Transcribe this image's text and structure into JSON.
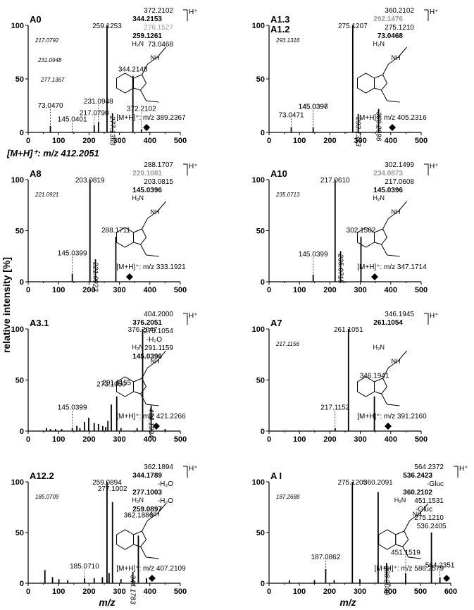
{
  "figure": {
    "ylabel": "relative intensity [%]",
    "xlabel": "m/z",
    "precursor_note": "[M+H]⁺: m/z 412.2051"
  },
  "chart_data": [
    {
      "id": "A0",
      "type": "bar",
      "label": "A0",
      "xlim": [
        0,
        500
      ],
      "ylim": [
        0,
        100
      ],
      "xticks": [
        0,
        100,
        200,
        300,
        400,
        500
      ],
      "yticks": [
        0,
        50,
        100
      ],
      "precursor": "[M+H]⁺: m/z 389.2367",
      "precursor_mz": 389.2,
      "peaks": [
        [
          73.047,
          6
        ],
        [
          145.0401,
          1
        ],
        [
          217.079,
          7
        ],
        [
          231.0948,
          10
        ],
        [
          259.1253,
          100
        ],
        [
          277.1363,
          18
        ],
        [
          344.2148,
          53
        ],
        [
          372.2102,
          3
        ]
      ],
      "peak_labels": [
        {
          "mz": 259.1253,
          "text": "259.1253"
        },
        {
          "mz": 231.0948,
          "text": "231.0948"
        },
        {
          "mz": 217.079,
          "text": "217.0790"
        },
        {
          "mz": 73.047,
          "text": "73.0470"
        },
        {
          "mz": 145.0401,
          "text": "145.0401"
        },
        {
          "mz": 277.1363,
          "text": "277.1363"
        },
        {
          "mz": 344.2148,
          "text": "344.2148"
        },
        {
          "mz": 372.2102,
          "text": "372.2102"
        }
      ],
      "fragments": [
        "372.2102",
        "344.2153",
        "276.1527",
        "259.1261",
        "73.0468"
      ],
      "inset_values": [
        "217.0792",
        "231.0948",
        "277.1367"
      ]
    },
    {
      "id": "A1.3",
      "type": "bar",
      "label": "A1.3",
      "label2": "A1.2",
      "xlim": [
        0,
        500
      ],
      "ylim": [
        0,
        100
      ],
      "xticks": [
        0,
        100,
        200,
        300,
        400,
        500
      ],
      "yticks": [
        0,
        50,
        100
      ],
      "precursor": "[M+H]⁺: m/z 405.2316",
      "precursor_mz": 405.2,
      "peaks": [
        [
          73.0471,
          5
        ],
        [
          145.0397,
          5
        ],
        [
          275.1207,
          100
        ],
        [
          293.1313,
          17
        ],
        [
          360.2096,
          22
        ]
      ],
      "peak_labels": [
        {
          "mz": 275.1207,
          "text": "275.1207"
        },
        {
          "mz": 145.0396,
          "text": "145.0396"
        },
        {
          "mz": 73.0471,
          "text": "73.0471"
        },
        {
          "mz": 145.0397,
          "text": "145.0397"
        },
        {
          "mz": 293.1313,
          "text": "293.1313"
        },
        {
          "mz": 360.2096,
          "text": "360.2096"
        }
      ],
      "fragments": [
        "360.2102",
        "292.1476",
        "275.1210",
        "73.0468"
      ],
      "inset_values": [
        "293.1316"
      ]
    },
    {
      "id": "A8",
      "type": "bar",
      "label": "A8",
      "xlim": [
        0,
        500
      ],
      "ylim": [
        0,
        100
      ],
      "xticks": [
        0,
        100,
        200,
        300,
        400,
        500
      ],
      "yticks": [
        0,
        50,
        100
      ],
      "precursor": "[M+H]⁺: m/z 333.1921",
      "precursor_mz": 333.2,
      "peaks": [
        [
          145.0399,
          8
        ],
        [
          203.0819,
          100
        ],
        [
          221.0923,
          22
        ],
        [
          288.1711,
          44
        ]
      ],
      "peak_labels": [
        {
          "mz": 203.0819,
          "text": "203.0819"
        },
        {
          "mz": 145.0399,
          "text": "145.0399"
        },
        {
          "mz": 221.0923,
          "text": "221.0923"
        },
        {
          "mz": 288.1711,
          "text": "288.1711"
        }
      ],
      "fragments": [
        "288.1707",
        "220.1081",
        "203.0815",
        "145.0396"
      ],
      "inset_values": [
        "221.0921"
      ]
    },
    {
      "id": "A10",
      "type": "bar",
      "label": "A10",
      "xlim": [
        0,
        500
      ],
      "ylim": [
        0,
        100
      ],
      "xticks": [
        0,
        100,
        200,
        300,
        400,
        500
      ],
      "yticks": [
        0,
        50,
        100
      ],
      "precursor": "[M+H]⁺: m/z 347.1714",
      "precursor_mz": 347.2,
      "peaks": [
        [
          145.0399,
          7
        ],
        [
          217.061,
          100
        ],
        [
          235.0715,
          30
        ],
        [
          302.1502,
          44
        ]
      ],
      "peak_labels": [
        {
          "mz": 217.061,
          "text": "217.0610"
        },
        {
          "mz": 145.0399,
          "text": "145.0399"
        },
        {
          "mz": 235.0715,
          "text": "235.0715"
        },
        {
          "mz": 302.1502,
          "text": "302.1502"
        }
      ],
      "fragments": [
        "302.1499",
        "234.0873",
        "217.0608",
        "145.0396"
      ],
      "inset_values": [
        "235.0713"
      ]
    },
    {
      "id": "A3.1",
      "type": "bar",
      "label": "A3.1",
      "xlim": [
        0,
        500
      ],
      "ylim": [
        0,
        100
      ],
      "xticks": [
        0,
        100,
        200,
        300,
        400,
        500
      ],
      "yticks": [
        0,
        50,
        100
      ],
      "precursor": "[M+H]⁺: m/z 421.2266",
      "precursor_mz": 421.2,
      "peaks": [
        [
          60,
          3
        ],
        [
          73,
          2
        ],
        [
          90,
          2
        ],
        [
          110,
          2
        ],
        [
          145.0399,
          3
        ],
        [
          160,
          5
        ],
        [
          170,
          3
        ],
        [
          185,
          9
        ],
        [
          199,
          13
        ],
        [
          217,
          8
        ],
        [
          231,
          7
        ],
        [
          245,
          5
        ],
        [
          255,
          4
        ],
        [
          262,
          10
        ],
        [
          273.105,
          26
        ],
        [
          291.1155,
          34
        ],
        [
          305,
          3
        ],
        [
          358,
          3
        ],
        [
          376.2047,
          100
        ],
        [
          404.1994,
          25
        ],
        [
          450,
          2
        ]
      ],
      "peak_labels": [
        {
          "mz": 376.2047,
          "text": "376.2047"
        },
        {
          "mz": 291.1155,
          "text": "291.1155"
        },
        {
          "mz": 273.105,
          "text": "273.1050"
        },
        {
          "mz": 145.0399,
          "text": "145.0399"
        },
        {
          "mz": 404.1994,
          "text": "404.1994"
        }
      ],
      "fragments": [
        "404.2000",
        "376.2051",
        "273.1054",
        "-H₂O",
        "291.1159",
        "145.0396"
      ]
    },
    {
      "id": "A7",
      "type": "bar",
      "label": "A7",
      "xlim": [
        0,
        500
      ],
      "ylim": [
        0,
        100
      ],
      "xticks": [
        0,
        100,
        200,
        300,
        400,
        500
      ],
      "yticks": [
        0,
        50,
        100
      ],
      "precursor": "[M+H]⁺: m/z 391.2160",
      "precursor_mz": 391.2,
      "peaks": [
        [
          217.1152,
          3
        ],
        [
          261.1051,
          100
        ],
        [
          346.1941,
          34
        ]
      ],
      "peak_labels": [
        {
          "mz": 261.1051,
          "text": "261.1051"
        },
        {
          "mz": 217.1152,
          "text": "217.1152"
        },
        {
          "mz": 346.1941,
          "text": "346.1941"
        }
      ],
      "fragments": [
        "346.1945",
        "261.1054"
      ],
      "inset_values": [
        "217.1156"
      ]
    },
    {
      "id": "A12.2",
      "type": "bar",
      "label": "A12.2",
      "xlim": [
        0,
        500
      ],
      "ylim": [
        0,
        100
      ],
      "xticks": [
        0,
        100,
        200,
        300,
        400,
        500
      ],
      "yticks": [
        0,
        50,
        100
      ],
      "precursor": "[M+H]⁺: m/z 407.2109",
      "precursor_mz": 407.2,
      "peaks": [
        [
          55,
          13
        ],
        [
          80,
          6
        ],
        [
          101,
          4
        ],
        [
          130,
          3
        ],
        [
          185.071,
          5
        ],
        [
          217,
          5
        ],
        [
          244,
          6
        ],
        [
          259.0894,
          100
        ],
        [
          266,
          10
        ],
        [
          277.1002,
          80
        ],
        [
          305,
          4
        ],
        [
          344.1783,
          11
        ],
        [
          362.1886,
          47
        ],
        [
          389,
          5
        ]
      ],
      "peak_labels": [
        {
          "mz": 259.0894,
          "text": "259.0894"
        },
        {
          "mz": 277.1002,
          "text": "277.1002"
        },
        {
          "mz": 362.1886,
          "text": "362.1886"
        },
        {
          "mz": 344.1783,
          "text": "344.1783"
        },
        {
          "mz": 185.071,
          "text": "185.0710"
        }
      ],
      "fragments": [
        "362.1894",
        "344.1789",
        "-H₂O",
        "277.1003",
        "-H₂O",
        "259.0897"
      ],
      "inset_values": [
        "185.0709"
      ]
    },
    {
      "id": "AI",
      "type": "bar",
      "label": "A I",
      "xlim": [
        0,
        600
      ],
      "ylim": [
        0,
        100
      ],
      "xticks": [
        0,
        100,
        200,
        300,
        400,
        500,
        600
      ],
      "yticks": [
        0,
        50,
        100
      ],
      "precursor": "[M+H]⁺: m/z 586.2579",
      "precursor_mz": 586.3,
      "peaks": [
        [
          67,
          3
        ],
        [
          150,
          3
        ],
        [
          187.0862,
          14
        ],
        [
          215,
          3
        ],
        [
          275.1205,
          100
        ],
        [
          300,
          4
        ],
        [
          360.2091,
          90
        ],
        [
          388.2039,
          20
        ],
        [
          451.1519,
          10
        ],
        [
          536.2405,
          50
        ],
        [
          564.2351,
          6
        ]
      ],
      "peak_labels": [
        {
          "mz": 275.1205,
          "text": "275.1205"
        },
        {
          "mz": 360.2091,
          "text": "360.2091"
        },
        {
          "mz": 388.2039,
          "text": "388.2039"
        },
        {
          "mz": 536.2405,
          "text": "536.2405"
        },
        {
          "mz": 187.0862,
          "text": "187.0862"
        },
        {
          "mz": 451.1519,
          "text": "451.1519"
        },
        {
          "mz": 564.2351,
          "text": "564.2351"
        }
      ],
      "fragments": [
        "564.2372",
        "536.2423",
        "-Gluc",
        "360.2102",
        "451.1531",
        "-Gluc",
        "275.1210"
      ],
      "inset_values": [
        "187.2688"
      ]
    }
  ]
}
